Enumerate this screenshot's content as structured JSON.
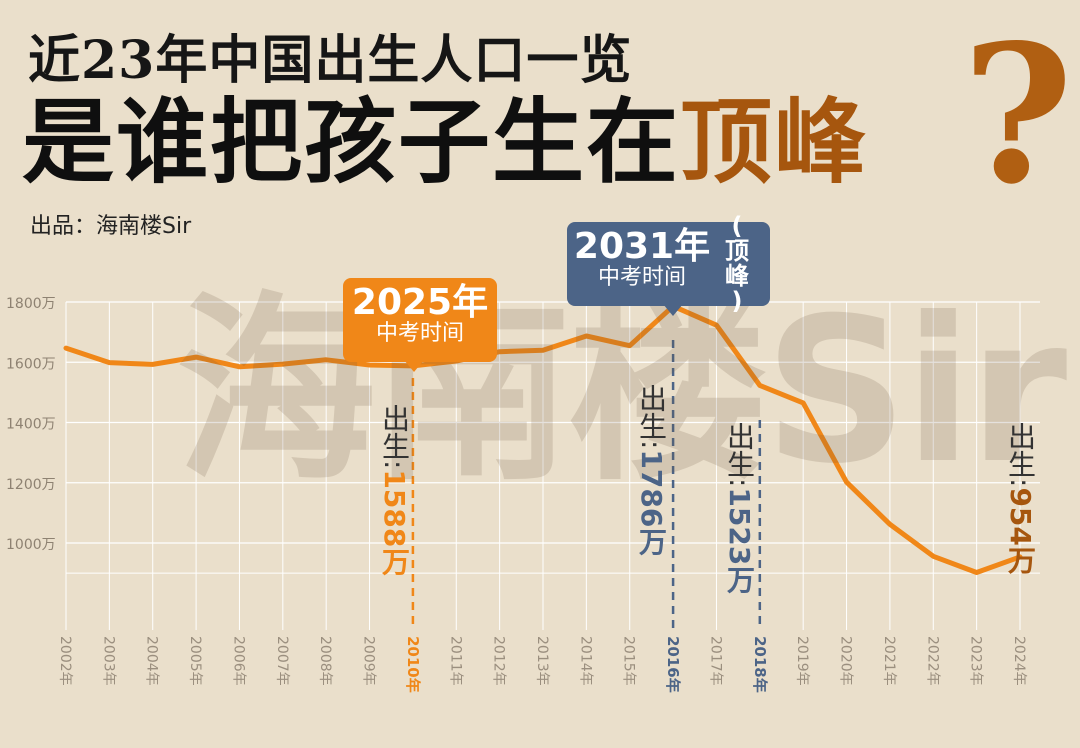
{
  "header": {
    "title_line1": "近23年中国出生人口一览",
    "title_line2_prefix": "是谁把孩子生在",
    "title_line2_highlight": "顶峰",
    "question_mark": "?",
    "credit": "出品：海南楼Sir"
  },
  "watermark": "海南楼Sir",
  "chart_data": {
    "type": "line",
    "title": "",
    "xlabel": "",
    "ylabel": "",
    "ylim": [
      850,
      1800
    ],
    "y_ticks": [
      "1000万",
      "1200万",
      "1400万",
      "1600万",
      "1800万"
    ],
    "y_tick_values": [
      1000,
      1200,
      1400,
      1600,
      1800
    ],
    "grid": true,
    "categories": [
      "2002年",
      "2003年",
      "2004年",
      "2005年",
      "2006年",
      "2007年",
      "2008年",
      "2009年",
      "2010年",
      "2011年",
      "2012年",
      "2013年",
      "2014年",
      "2015年",
      "2016年",
      "2017年",
      "2018年",
      "2019年",
      "2020年",
      "2021年",
      "2022年",
      "2023年",
      "2024年"
    ],
    "series": [
      {
        "values": [
          1647,
          1599,
          1593,
          1617,
          1585,
          1594,
          1608,
          1591,
          1588,
          1604,
          1635,
          1640,
          1687,
          1655,
          1786,
          1723,
          1523,
          1465,
          1202,
          1062,
          956,
          902,
          954
        ]
      }
    ],
    "highlights": [
      {
        "year": "2010年",
        "color": "#f08718",
        "label_prefix": "出生:",
        "label_value": "1588万",
        "callout_big": "2025年",
        "callout_small": "中考时间",
        "axis_color": "#f08718"
      },
      {
        "year": "2016年",
        "color": "#4c6487",
        "label_prefix": "出生:",
        "label_value": "1786万",
        "callout_big": "2031年",
        "callout_small": "中考时间",
        "callout_side": [
          "(",
          "顶",
          "峰",
          ")"
        ],
        "axis_color": "#4c6487"
      },
      {
        "year": "2018年",
        "color": "#4c6487",
        "label_prefix": "出生:",
        "label_value": "1523万",
        "axis_color": "#4c6487"
      },
      {
        "year": "2024年",
        "color": "#a6560e",
        "label_prefix": "出生:",
        "label_value": "954万",
        "axis_color": "#9b8f7f"
      }
    ],
    "colors": {
      "line": "#f08718",
      "grid": "#ffffff",
      "axis_text": "#9b8f7f"
    }
  }
}
